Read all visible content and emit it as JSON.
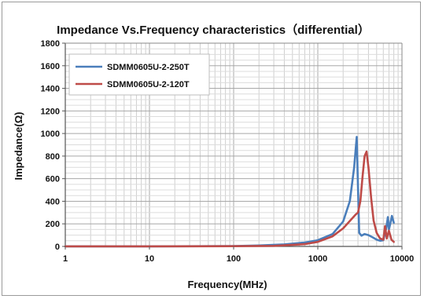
{
  "chart_data": {
    "type": "line",
    "title": "Impedance Vs.Frequency characteristics（differential）",
    "xlabel": "Frequency(MHz)",
    "ylabel": "Impedance(Ω)",
    "x_scale": "log",
    "xlim": [
      1,
      10000
    ],
    "ylim": [
      0,
      1800
    ],
    "x_ticks": [
      1,
      10,
      100,
      1000,
      10000
    ],
    "x_tick_labels": [
      "1",
      "10",
      "100",
      "1000",
      "10000"
    ],
    "y_ticks": [
      0,
      200,
      400,
      600,
      800,
      1000,
      1200,
      1400,
      1600,
      1800
    ],
    "grid": true,
    "legend_position": "top-left",
    "series": [
      {
        "name": "SDMM0605U-2-250T",
        "color": "#4a7ebb",
        "x": [
          1,
          10,
          100,
          200,
          400,
          700,
          1000,
          1500,
          2000,
          2400,
          2700,
          2900,
          3000,
          3100,
          3300,
          3600,
          4000,
          4500,
          5000,
          5500,
          6000,
          6500,
          6800,
          7000,
          7300,
          7600,
          8000
        ],
        "y": [
          1,
          1,
          3,
          8,
          18,
          35,
          55,
          110,
          220,
          400,
          700,
          970,
          520,
          120,
          95,
          110,
          100,
          80,
          60,
          50,
          55,
          160,
          260,
          150,
          210,
          270,
          210
        ]
      },
      {
        "name": "SDMM0605U-2-120T",
        "color": "#be4b48",
        "x": [
          1,
          10,
          100,
          300,
          700,
          1000,
          1500,
          2000,
          2500,
          2800,
          3000,
          3200,
          3400,
          3600,
          3800,
          4000,
          4300,
          4600,
          5000,
          5500,
          6000,
          6300,
          6600,
          7000,
          7500,
          8000
        ],
        "y": [
          1,
          1,
          2,
          5,
          20,
          40,
          90,
          160,
          240,
          280,
          300,
          400,
          620,
          800,
          840,
          700,
          430,
          230,
          120,
          70,
          60,
          180,
          70,
          140,
          60,
          40
        ]
      }
    ]
  }
}
